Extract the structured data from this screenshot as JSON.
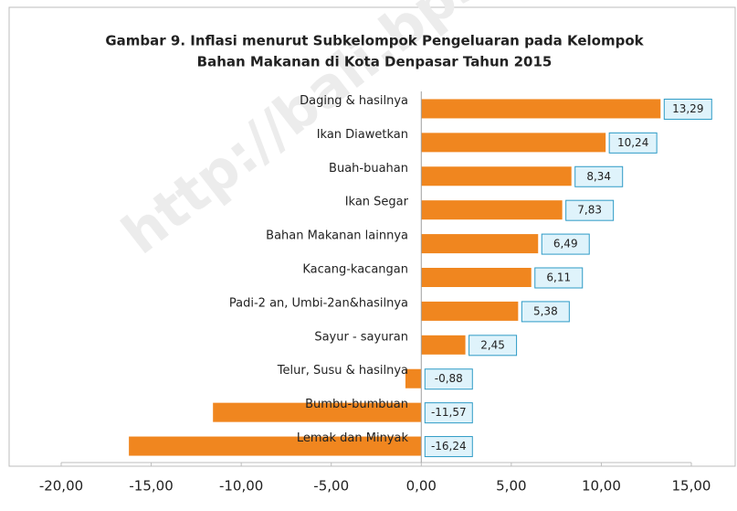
{
  "chart_data": {
    "type": "hbar",
    "title": [
      "Gambar 9. Inflasi menurut Subkelompok Pengeluaran pada Kelompok",
      "Bahan Makanan di Kota Denpasar Tahun 2015"
    ],
    "watermark": "http://bali.bps.go.id",
    "categories": [
      "Daging & hasilnya",
      "Ikan Diawetkan",
      "Buah-buahan",
      "Ikan Segar",
      "Bahan Makanan lainnya",
      "Kacang-kacangan",
      "Padi-2 an, Umbi-2an&hasilnya",
      "Sayur - sayuran",
      "Telur, Susu & hasilnya",
      "Bumbu-bumbuan",
      "Lemak dan Minyak"
    ],
    "values": [
      13.29,
      10.24,
      8.34,
      7.83,
      6.49,
      6.11,
      5.38,
      2.45,
      -0.88,
      -11.57,
      -16.24
    ],
    "value_labels": [
      "13,29",
      "10,24",
      "8,34",
      "7,83",
      "6,49",
      "6,11",
      "5,38",
      "2,45",
      "-0,88",
      "-11,57",
      "-16,24"
    ],
    "color": "#f0861f",
    "xlim": [
      -20,
      15
    ],
    "xticks": [
      {
        "value": -20,
        "label": "-20,00"
      },
      {
        "value": -15,
        "label": "-15,00"
      },
      {
        "value": -10,
        "label": "-10,00"
      },
      {
        "value": -5,
        "label": "-5,00"
      },
      {
        "value": 0,
        "label": "0,00"
      },
      {
        "value": 5,
        "label": "5,00"
      },
      {
        "value": 10,
        "label": "10,00"
      },
      {
        "value": 15,
        "label": "15,00"
      }
    ]
  }
}
